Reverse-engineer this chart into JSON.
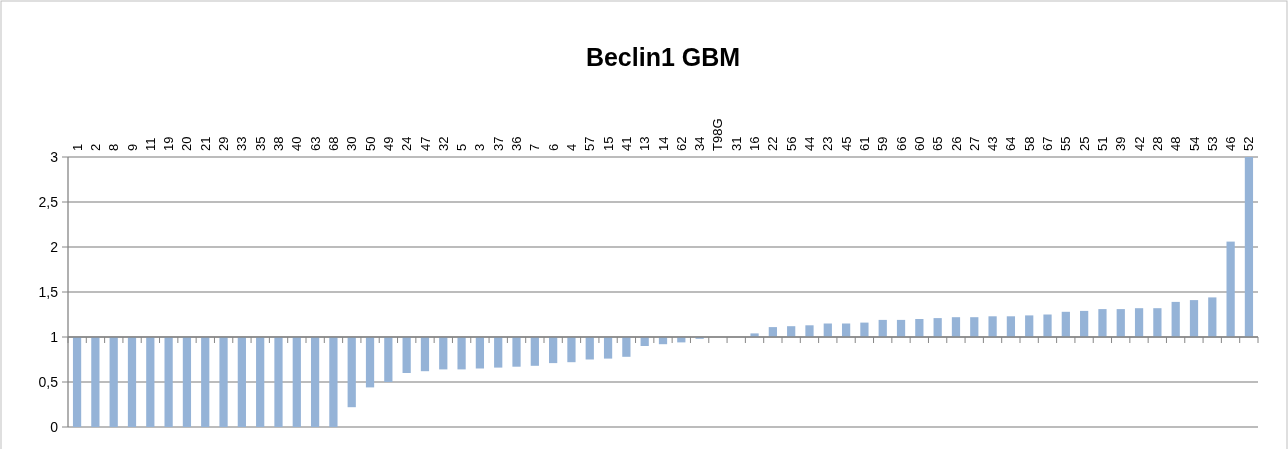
{
  "chart_data": {
    "type": "bar",
    "title": "Beclin1 GBM",
    "categories": [
      "1",
      "2",
      "8",
      "9",
      "11",
      "19",
      "20",
      "21",
      "29",
      "33",
      "35",
      "38",
      "40",
      "63",
      "68",
      "30",
      "50",
      "49",
      "24",
      "47",
      "32",
      "5",
      "3",
      "37",
      "36",
      "7",
      "6",
      "4",
      "57",
      "15",
      "41",
      "13",
      "14",
      "62",
      "34",
      "T98G",
      "31",
      "16",
      "22",
      "56",
      "44",
      "23",
      "45",
      "61",
      "59",
      "66",
      "60",
      "65",
      "26",
      "27",
      "43",
      "64",
      "58",
      "67",
      "55",
      "25",
      "51",
      "39",
      "42",
      "28",
      "48",
      "54",
      "53",
      "46",
      "52"
    ],
    "base": [
      1,
      1,
      1,
      1,
      1,
      1,
      1,
      1,
      1,
      1,
      1,
      1,
      1,
      1,
      1,
      1,
      1,
      1,
      1,
      1,
      1,
      1,
      1,
      1,
      1,
      1,
      1,
      1,
      1,
      1,
      1,
      1,
      1,
      1,
      1,
      null,
      null,
      1,
      1,
      1,
      1,
      1,
      1,
      1,
      1,
      1,
      1,
      1,
      1,
      1,
      1,
      1,
      1,
      1,
      1,
      1,
      1,
      1,
      1,
      1,
      1,
      1,
      1,
      1,
      1
    ],
    "values": [
      -1,
      -1,
      -1,
      -1,
      -1,
      -1,
      -1,
      -1,
      -1,
      -1,
      -1,
      -1,
      -1,
      -1,
      -1,
      -0.78,
      -0.56,
      -0.5,
      -0.4,
      -0.38,
      -0.36,
      -0.36,
      -0.35,
      -0.34,
      -0.33,
      -0.32,
      -0.29,
      -0.28,
      -0.25,
      -0.24,
      -0.22,
      -0.1,
      -0.08,
      -0.06,
      -0.02,
      null,
      null,
      0.04,
      0.11,
      0.12,
      0.13,
      0.15,
      0.15,
      0.16,
      0.19,
      0.19,
      0.2,
      0.21,
      0.22,
      0.22,
      0.23,
      0.23,
      0.24,
      0.25,
      0.28,
      0.29,
      0.31,
      0.31,
      0.32,
      0.32,
      0.39,
      0.41,
      0.44,
      1.06,
      2
    ],
    "color": "#95b3d7",
    "ylim": [
      0,
      3
    ],
    "yticks": [
      0,
      {
        "value": 0.5,
        "label": "0,5"
      },
      1,
      {
        "value": 1.5,
        "label": "1,5"
      },
      2,
      {
        "value": 2.5,
        "label": "2,5"
      },
      3
    ],
    "grid": "y",
    "ref_lines": [
      {
        "axis": "y",
        "value": 1,
        "color": "#868686"
      }
    ]
  }
}
